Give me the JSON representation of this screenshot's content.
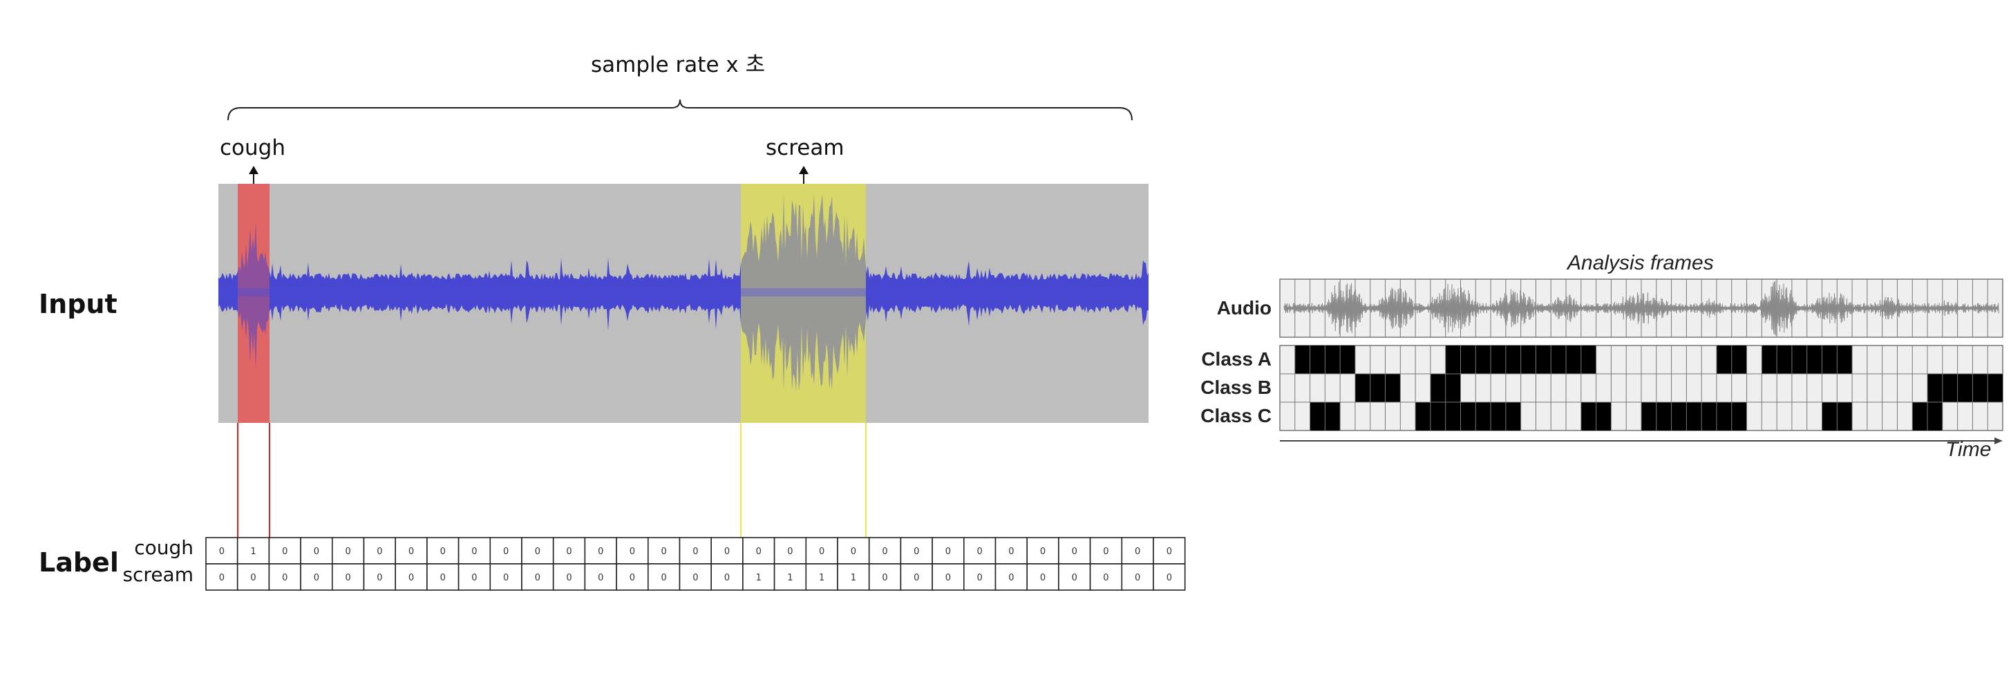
{
  "left_panel": {
    "bracket_label": "sample rate x 초",
    "event_labels": {
      "cough": "cough",
      "scream": "scream"
    },
    "row_labels": {
      "input": "Input",
      "label": "Label"
    },
    "label_rows": [
      {
        "name": "cough",
        "values": [
          0,
          1,
          0,
          0,
          0,
          0,
          0,
          0,
          0,
          0,
          0,
          0,
          0,
          0,
          0,
          0,
          0,
          0,
          0,
          0,
          0,
          0,
          0,
          0,
          0,
          0,
          0,
          0,
          0,
          0,
          0
        ]
      },
      {
        "name": "scream",
        "values": [
          0,
          0,
          0,
          0,
          0,
          0,
          0,
          0,
          0,
          0,
          0,
          0,
          0,
          0,
          0,
          0,
          0,
          1,
          1,
          1,
          1,
          0,
          0,
          0,
          0,
          0,
          0,
          0,
          0,
          0,
          0
        ]
      }
    ],
    "colors": {
      "waveform_bg": "#bebebe",
      "waveform": "#3a3ad4",
      "cough_highlight": "#e06666",
      "scream_highlight": "#d8d86a",
      "cough_line": "#dd2222",
      "scream_line": "#e8e84a"
    }
  },
  "right_panel": {
    "title": "Analysis frames",
    "audio_label": "Audio",
    "time_label": "Time",
    "classes": [
      {
        "name": "Class A",
        "active": [
          0,
          1,
          1,
          1,
          1,
          0,
          0,
          0,
          0,
          0,
          0,
          1,
          1,
          1,
          1,
          1,
          1,
          1,
          1,
          1,
          1,
          0,
          0,
          0,
          0,
          0,
          0,
          0,
          0,
          1,
          1,
          0,
          1,
          1,
          1,
          1,
          1,
          1,
          0,
          0,
          0,
          0,
          0,
          0,
          0,
          0,
          0,
          0
        ]
      },
      {
        "name": "Class B",
        "active": [
          0,
          0,
          0,
          0,
          0,
          1,
          1,
          1,
          0,
          0,
          1,
          1,
          0,
          0,
          0,
          0,
          0,
          0,
          0,
          0,
          0,
          0,
          0,
          0,
          0,
          0,
          0,
          0,
          0,
          0,
          0,
          0,
          0,
          0,
          0,
          0,
          0,
          0,
          0,
          0,
          0,
          0,
          0,
          1,
          1,
          1,
          1,
          1
        ]
      },
      {
        "name": "Class C",
        "active": [
          0,
          0,
          1,
          1,
          0,
          0,
          0,
          0,
          0,
          1,
          1,
          1,
          1,
          1,
          1,
          1,
          0,
          0,
          0,
          0,
          1,
          1,
          0,
          0,
          1,
          1,
          1,
          1,
          1,
          1,
          1,
          0,
          0,
          0,
          0,
          0,
          1,
          1,
          0,
          0,
          0,
          0,
          1,
          1,
          0,
          0,
          0,
          0
        ]
      }
    ],
    "colors": {
      "frame_bg": "#efefef",
      "active": "#000000",
      "grid": "#777777",
      "waveform": "#8a8a8a"
    }
  }
}
